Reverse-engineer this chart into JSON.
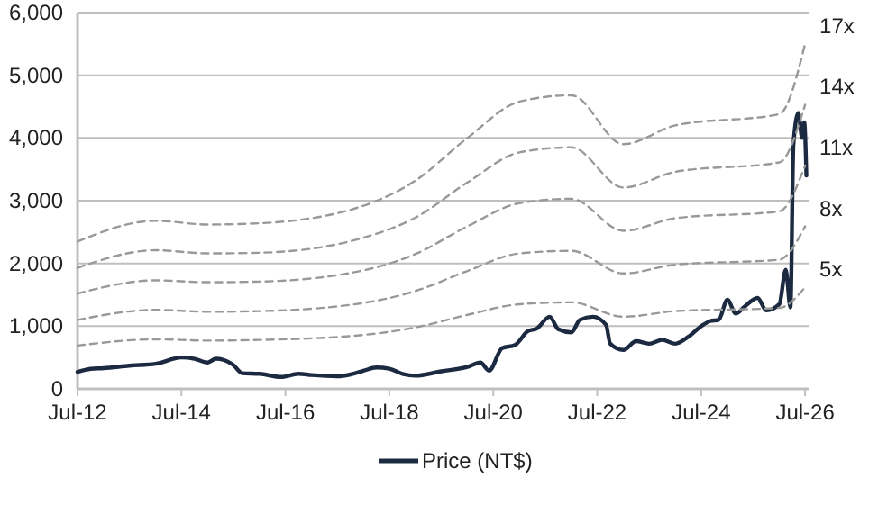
{
  "chart_data": {
    "type": "line",
    "legend": "bottom",
    "grid": "y",
    "xlim": [
      "2012-07",
      "2026-08"
    ],
    "xticks": [
      {
        "value": "2012-07",
        "label": "Jul-12"
      },
      {
        "value": "2014-07",
        "label": "Jul-14"
      },
      {
        "value": "2016-07",
        "label": "Jul-16"
      },
      {
        "value": "2018-07",
        "label": "Jul-18"
      },
      {
        "value": "2020-07",
        "label": "Jul-20"
      },
      {
        "value": "2022-07",
        "label": "Jul-22"
      },
      {
        "value": "2024-07",
        "label": "Jul-24"
      },
      {
        "value": "2026-07",
        "label": "Jul-26"
      }
    ],
    "ylim": [
      0,
      6000
    ],
    "yticks": [
      0,
      {
        "value": 1000,
        "label": "1,000"
      },
      {
        "value": 2000,
        "label": "2,000"
      },
      {
        "value": 3000,
        "label": "3,000"
      },
      {
        "value": 4000,
        "label": "4,000"
      },
      {
        "value": 5000,
        "label": "5,000"
      },
      {
        "value": 6000,
        "label": "6,000"
      }
    ],
    "series": [
      {
        "name": "Price (NT$)",
        "color": "#1b2a41",
        "line_style": "solid",
        "x": [
          "2012-07",
          "2012-10",
          "2013-01",
          "2013-07",
          "2014-01",
          "2014-07",
          "2014-10",
          "2015-01",
          "2015-03",
          "2015-07",
          "2015-09",
          "2016-01",
          "2016-06",
          "2016-10",
          "2017-01",
          "2017-07",
          "2017-10",
          "2018-01",
          "2018-04",
          "2018-07",
          "2018-10",
          "2019-01",
          "2019-07",
          "2020-01",
          "2020-04",
          "2020-06",
          "2020-09",
          "2020-12",
          "2021-03",
          "2021-05",
          "2021-08",
          "2021-10",
          "2022-01",
          "2022-03",
          "2022-06",
          "2022-09",
          "2022-10",
          "2023-01",
          "2023-04",
          "2023-07",
          "2023-10",
          "2024-01",
          "2024-04",
          "2024-07",
          "2024-09",
          "2024-11",
          "2025-01",
          "2025-03",
          "2025-05",
          "2025-08",
          "2025-10",
          "2026-01",
          "2026-02-15",
          "2026-03-20",
          "2026-04-10",
          "2026-05-15",
          "2026-06-10",
          "2026-06-25",
          "2026-07-10"
        ],
        "values": [
          270,
          320,
          330,
          370,
          400,
          500,
          480,
          420,
          480,
          380,
          250,
          240,
          190,
          240,
          220,
          200,
          230,
          290,
          340,
          320,
          240,
          210,
          280,
          350,
          420,
          290,
          650,
          700,
          920,
          960,
          1150,
          950,
          900,
          1100,
          1150,
          1020,
          720,
          620,
          760,
          720,
          780,
          720,
          830,
          1000,
          1080,
          1100,
          1420,
          1200,
          1310,
          1450,
          1250,
          1350,
          1900,
          1300,
          3900,
          4400,
          4000,
          4250,
          3400
        ]
      },
      {
        "name": "5x",
        "color": "#999999",
        "line_style": "dashed",
        "x": [
          "2012-07",
          "2014-01",
          "2015-01",
          "2016-01",
          "2018-01",
          "2019-01",
          "2020-01",
          "2021-01",
          "2022-01",
          "2023-01",
          "2024-01",
          "2026-01",
          "2026-07"
        ],
        "values": [
          690,
          790,
          770,
          780,
          860,
          980,
          1180,
          1350,
          1380,
          1150,
          1240,
          1290,
          1620
        ]
      },
      {
        "name": "8x",
        "color": "#999999",
        "line_style": "dashed",
        "x": [
          "2012-07",
          "2014-01",
          "2015-01",
          "2016-01",
          "2018-01",
          "2019-01",
          "2020-01",
          "2021-01",
          "2022-01",
          "2023-01",
          "2024-01",
          "2026-01",
          "2026-07"
        ],
        "values": [
          1100,
          1260,
          1230,
          1240,
          1370,
          1560,
          1880,
          2160,
          2200,
          1840,
          1980,
          2060,
          2590
        ]
      },
      {
        "name": "11x",
        "color": "#999999",
        "line_style": "dashed",
        "x": [
          "2012-07",
          "2014-01",
          "2015-01",
          "2016-01",
          "2018-01",
          "2019-01",
          "2020-01",
          "2021-01",
          "2022-01",
          "2023-01",
          "2024-01",
          "2026-01",
          "2026-07"
        ],
        "values": [
          1520,
          1730,
          1700,
          1710,
          1890,
          2150,
          2590,
          2960,
          3030,
          2520,
          2720,
          2830,
          3560
        ]
      },
      {
        "name": "14x",
        "color": "#999999",
        "line_style": "dashed",
        "x": [
          "2012-07",
          "2014-01",
          "2015-01",
          "2016-01",
          "2018-01",
          "2019-01",
          "2020-01",
          "2021-01",
          "2022-01",
          "2023-01",
          "2024-01",
          "2026-01",
          "2026-07"
        ],
        "values": [
          1930,
          2210,
          2160,
          2170,
          2410,
          2730,
          3290,
          3770,
          3850,
          3210,
          3460,
          3610,
          4530
        ]
      },
      {
        "name": "17x",
        "color": "#999999",
        "line_style": "dashed",
        "x": [
          "2012-07",
          "2014-01",
          "2015-01",
          "2016-01",
          "2018-01",
          "2019-01",
          "2020-01",
          "2021-01",
          "2022-01",
          "2023-01",
          "2024-01",
          "2026-01",
          "2026-07"
        ],
        "values": [
          2350,
          2680,
          2620,
          2640,
          2920,
          3320,
          4000,
          4580,
          4680,
          3900,
          4200,
          4380,
          5500
        ]
      }
    ]
  }
}
